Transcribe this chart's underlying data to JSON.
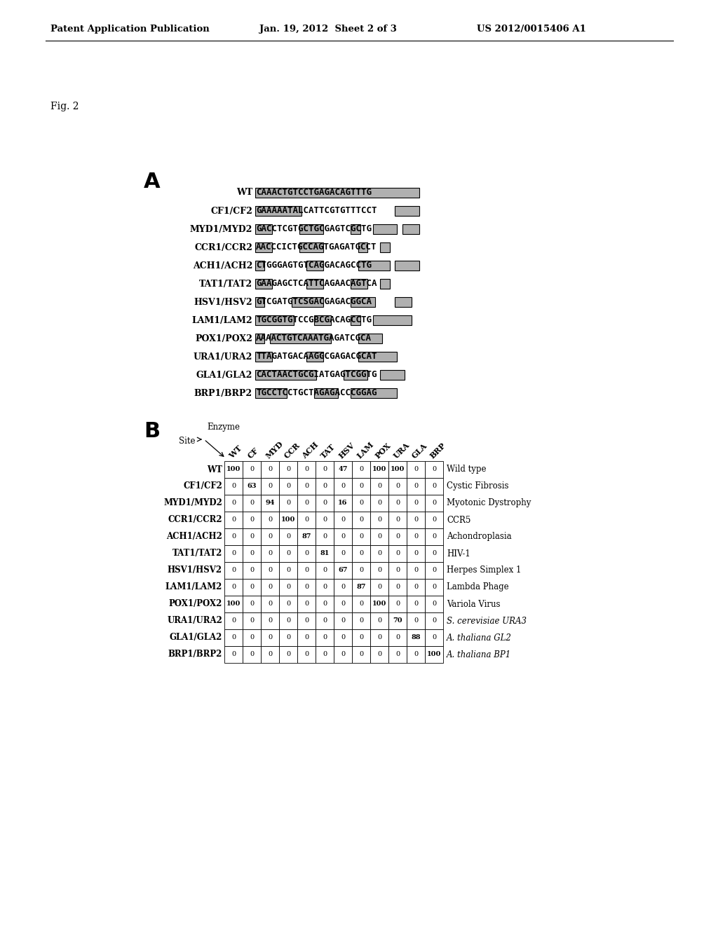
{
  "header_left": "Patent Application Publication",
  "header_mid": "Jan. 19, 2012  Sheet 2 of 3",
  "header_right": "US 2012/0015406 A1",
  "fig_label": "Fig. 2",
  "section_A_label": "A",
  "section_B_label": "B",
  "sequences": [
    {
      "label": "WT",
      "seq": "CAAACTGTCCTGAGACAGTTTG"
    },
    {
      "label": "CF1/CF2",
      "seq": "GAAAAATALCATTCGTGTTTCCT"
    },
    {
      "label": "MYD1/MYD2",
      "seq": "GACCTCGTGCTGCGAGTCGCTG"
    },
    {
      "label": "CCR1/CCR2",
      "seq": "AACCCICTGCCAGTGAGATGCCT"
    },
    {
      "label": "ACH1/ACH2",
      "seq": "CTGGGAGTGTCAGGACAGCCTG"
    },
    {
      "label": "TAT1/TAT2",
      "seq": "GAAGAGCTCATTCAGAACAGTCA"
    },
    {
      "label": "HSV1/HSV2",
      "seq": "GTCGATGTCSGACGAGACGGCA"
    },
    {
      "label": "LAM1/LAM2",
      "seq": "TGCGGTGTCCGBCGACAGCCTG"
    },
    {
      "label": "POX1/POX2",
      "seq": "AAAACTGTCAAATGAGATCGCA"
    },
    {
      "label": "URA1/URA2",
      "seq": "TTAGATGACAAGGCGAGACGCAT"
    },
    {
      "label": "GLA1/GLA2",
      "seq": "CACTAACTGCGIATGAGTCGGTG"
    },
    {
      "label": "BRP1/BRP2",
      "seq": "TGCCTCCTGCTAGAGACCCGGAG"
    }
  ],
  "col_headers": [
    "WT",
    "CF",
    "MYD",
    "CCR",
    "ACH",
    "TAT",
    "HSV",
    "LAM",
    "POX",
    "URA",
    "GLA",
    "BRP"
  ],
  "row_labels": [
    "WT",
    "CF1/CF2",
    "MYD1/MYD2",
    "CCR1/CCR2",
    "ACH1/ACH2",
    "TAT1/TAT2",
    "HSV1/HSV2",
    "LAM1/LAM2",
    "POX1/POX2",
    "URA1/URA2",
    "GLA1/GLA2",
    "BRP1/BRP2"
  ],
  "row_descriptions": [
    "Wild type",
    "Cystic Fibrosis",
    "Myotonic Dystrophy",
    "CCR5",
    "Achondroplasia",
    "HIV-1",
    "Herpes Simplex 1",
    "Lambda Phage",
    "Variola Virus",
    "S. cerevisiae URA3",
    "A. thaliana GL2",
    "A. thaliana BP1"
  ],
  "row_descriptions_italic": [
    false,
    false,
    false,
    false,
    false,
    false,
    false,
    false,
    false,
    true,
    true,
    true
  ],
  "table_data": [
    [
      100,
      0,
      0,
      0,
      0,
      0,
      47,
      0,
      100,
      100,
      0,
      0
    ],
    [
      0,
      63,
      0,
      0,
      0,
      0,
      0,
      0,
      0,
      0,
      0,
      0
    ],
    [
      0,
      0,
      94,
      0,
      0,
      0,
      16,
      0,
      0,
      0,
      0,
      0
    ],
    [
      0,
      0,
      0,
      100,
      0,
      0,
      0,
      0,
      0,
      0,
      0,
      0
    ],
    [
      0,
      0,
      0,
      0,
      87,
      0,
      0,
      0,
      0,
      0,
      0,
      0
    ],
    [
      0,
      0,
      0,
      0,
      0,
      81,
      0,
      0,
      0,
      0,
      0,
      0
    ],
    [
      0,
      0,
      0,
      0,
      0,
      0,
      67,
      0,
      0,
      0,
      0,
      0
    ],
    [
      0,
      0,
      0,
      0,
      0,
      0,
      0,
      87,
      0,
      0,
      0,
      0
    ],
    [
      100,
      0,
      0,
      0,
      0,
      0,
      0,
      0,
      100,
      0,
      0,
      0
    ],
    [
      0,
      0,
      0,
      0,
      0,
      0,
      0,
      0,
      0,
      70,
      0,
      0
    ],
    [
      0,
      0,
      0,
      0,
      0,
      0,
      0,
      0,
      0,
      0,
      88,
      0
    ],
    [
      0,
      0,
      0,
      0,
      0,
      0,
      0,
      0,
      0,
      0,
      0,
      100
    ]
  ],
  "bg_color": "#ffffff",
  "text_color": "#000000"
}
